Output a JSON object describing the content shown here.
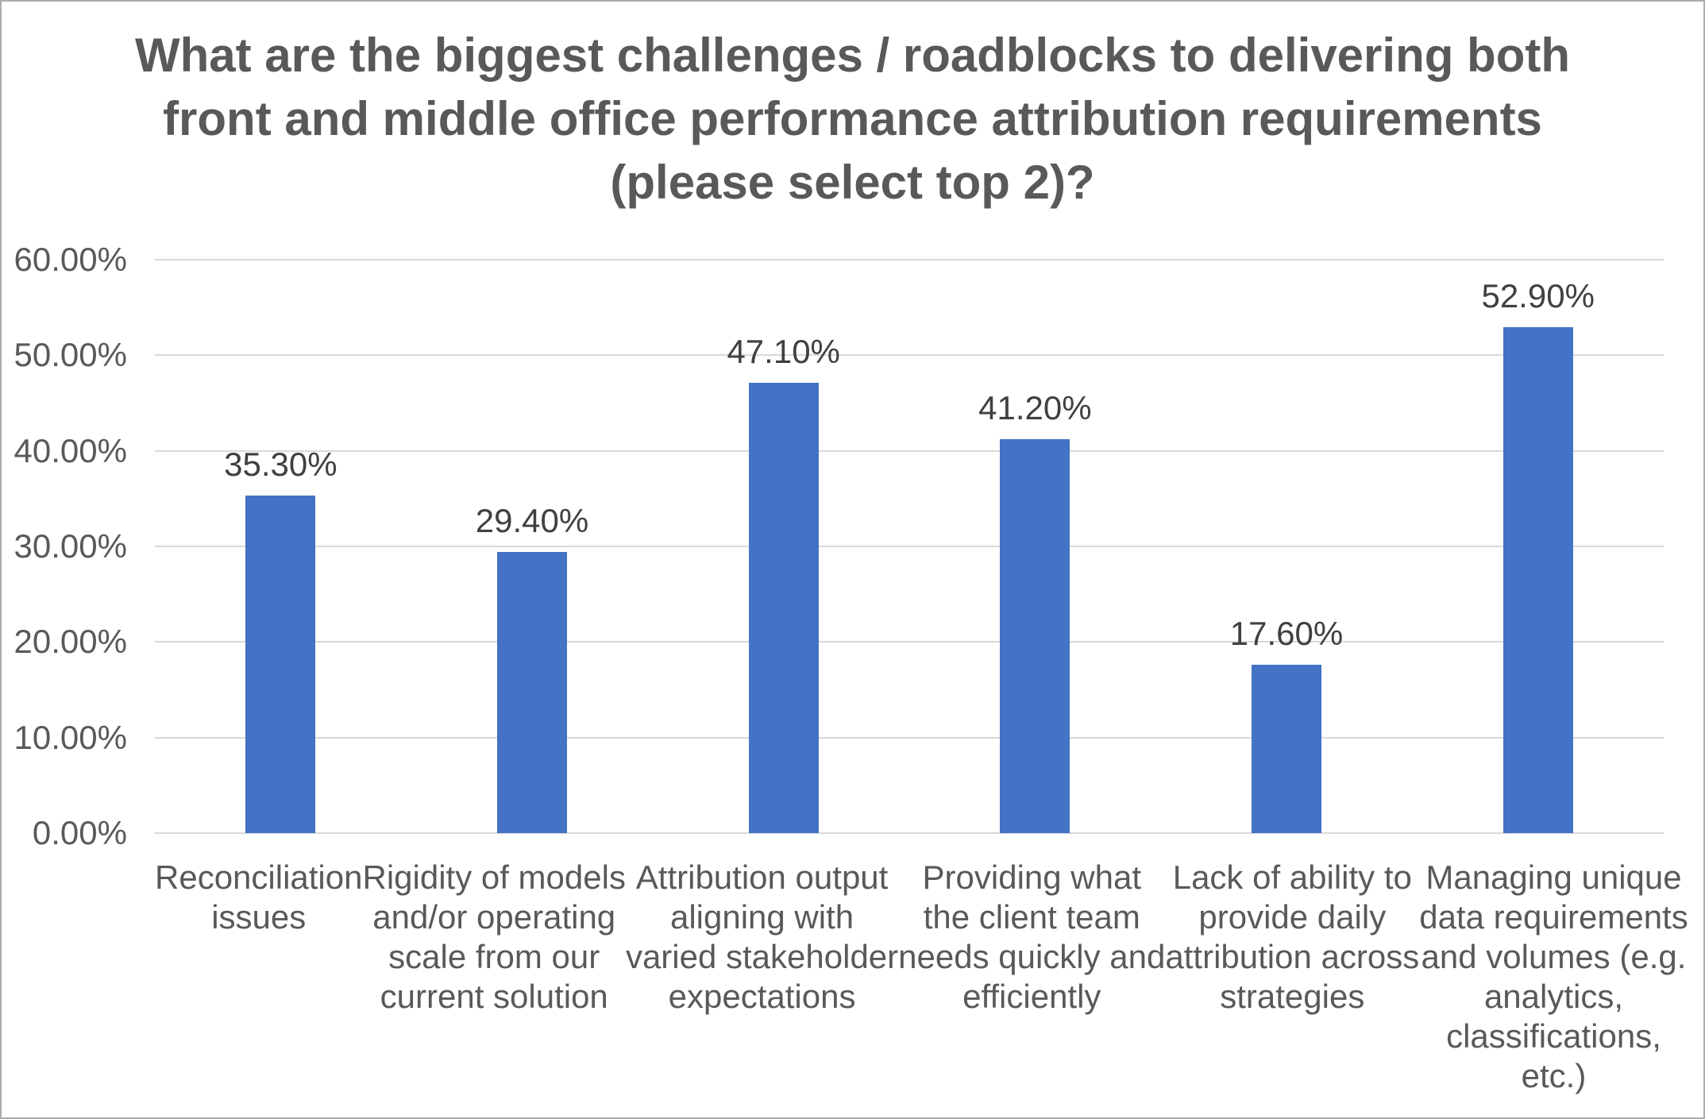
{
  "chart_data": {
    "type": "bar",
    "title": "What are the biggest challenges / roadblocks to delivering both front and middle office performance attribution requirements (please select top 2)?",
    "title_lines": [
      "What are the biggest challenges / roadblocks to delivering both",
      "front and middle office performance attribution requirements",
      "(please select top 2)?"
    ],
    "categories": [
      "Reconciliation issues",
      "Rigidity of models and/or operating scale from our current solution",
      "Attribution output aligning with varied stakeholder expectations",
      "Providing what the client team needs quickly and efficiently",
      "Lack of ability to provide daily attribution across strategies",
      "Managing unique data requirements and volumes (e.g. analytics, classifications, etc.)"
    ],
    "category_lines": [
      [
        "Reconciliation",
        "issues"
      ],
      [
        "Rigidity of models",
        "and/or operating",
        "scale from our",
        "current solution"
      ],
      [
        "Attribution output",
        "aligning with",
        "varied stakeholder",
        "expectations"
      ],
      [
        "Providing what",
        "the client team",
        "needs quickly and",
        "efficiently"
      ],
      [
        "Lack of ability to",
        "provide daily",
        "attribution across",
        "strategies"
      ],
      [
        "Managing unique",
        "data requirements",
        "and volumes (e.g.",
        "analytics,",
        "classifications,",
        "etc.)"
      ]
    ],
    "values": [
      35.3,
      29.4,
      47.1,
      41.2,
      17.6,
      52.9
    ],
    "value_labels": [
      "35.30%",
      "29.40%",
      "47.10%",
      "41.20%",
      "17.60%",
      "52.90%"
    ],
    "xlabel": "",
    "ylabel": "",
    "ylim": [
      0,
      60
    ],
    "y_tick_values": [
      0,
      10,
      20,
      30,
      40,
      50,
      60
    ],
    "y_tick_labels": [
      "0.00%",
      "10.00%",
      "20.00%",
      "30.00%",
      "40.00%",
      "50.00%",
      "60.00%"
    ],
    "grid": true,
    "legend": "none"
  },
  "colors": {
    "bar": "#4472C4",
    "title": "#595959",
    "axis_label": "#595959",
    "data_label": "#404040",
    "gridline": "#D9D9D9",
    "border": "#ABABAB",
    "background": "#FFFFFF"
  }
}
